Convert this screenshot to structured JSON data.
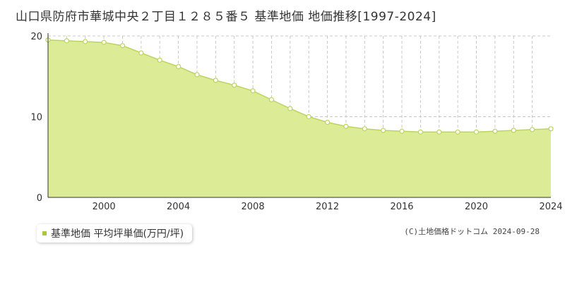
{
  "title": "山口県防府市華城中央２丁目１２８５番５ 基準地価 地価推移[1997-2024]",
  "legend_label": "基準地価 平均坪単価(万円/坪)",
  "credit": "(C)土地価格ドットコム 2024-09-28",
  "colors": {
    "area_fill": "#dcec96",
    "line": "#bcd45e",
    "marker": "#a8c93a",
    "point_fill": "#ffffff",
    "grid": "#c8c8c8",
    "axis": "#333333"
  },
  "chart_data": {
    "type": "area",
    "title": "山口県防府市華城中央２丁目１２８５番５ 基準地価 地価推移[1997-2024]",
    "xlabel": "",
    "ylabel": "",
    "xlim": [
      1997,
      2024
    ],
    "ylim": [
      0,
      20
    ],
    "x_ticks": [
      2000,
      2004,
      2008,
      2012,
      2016,
      2020,
      2024
    ],
    "y_ticks": [
      0,
      10,
      20
    ],
    "grid": true,
    "legend_position": "bottom-left",
    "series": [
      {
        "name": "基準地価 平均坪単価(万円/坪)",
        "x": [
          1997,
          1998,
          1999,
          2000,
          2001,
          2002,
          2003,
          2004,
          2005,
          2006,
          2007,
          2008,
          2009,
          2010,
          2011,
          2012,
          2013,
          2014,
          2015,
          2016,
          2017,
          2018,
          2019,
          2020,
          2021,
          2022,
          2023,
          2024
        ],
        "values": [
          19.5,
          19.4,
          19.3,
          19.2,
          18.8,
          17.9,
          17.0,
          16.2,
          15.2,
          14.5,
          13.9,
          13.2,
          12.1,
          11.0,
          10.0,
          9.3,
          8.8,
          8.5,
          8.3,
          8.2,
          8.1,
          8.1,
          8.1,
          8.1,
          8.2,
          8.3,
          8.4,
          8.5
        ]
      }
    ]
  }
}
